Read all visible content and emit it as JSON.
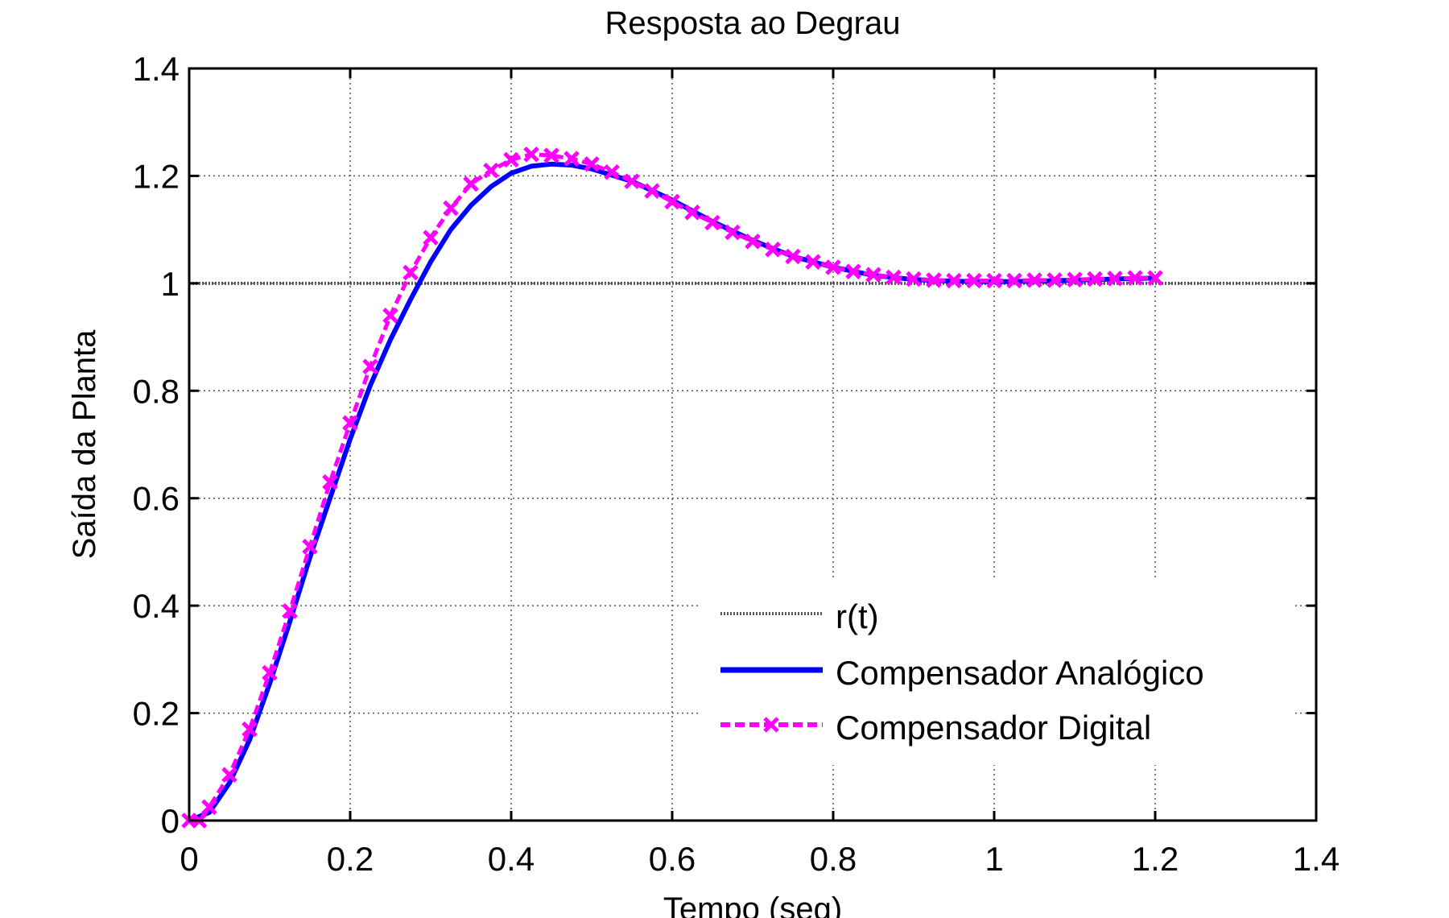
{
  "chart_data": {
    "type": "line",
    "title": "Resposta ao Degrau",
    "xlabel": "Tempo (seg)",
    "ylabel": "Saída da Planta",
    "xlim": [
      0,
      1.4
    ],
    "ylim": [
      0,
      1.4
    ],
    "grid": true,
    "legend_position": "bottom-right",
    "x_ticks": [
      "0",
      "0.2",
      "0.4",
      "0.6",
      "0.8",
      "1",
      "1.2",
      "1.4"
    ],
    "y_ticks": [
      "0",
      "0.2",
      "0.4",
      "0.6",
      "0.8",
      "1",
      "1.2",
      "1.4"
    ],
    "x_tick_values": [
      0,
      0.2,
      0.4,
      0.6,
      0.8,
      1.0,
      1.2,
      1.4
    ],
    "y_tick_values": [
      0,
      0.2,
      0.4,
      0.6,
      0.8,
      1.0,
      1.2,
      1.4
    ],
    "series": [
      {
        "name": "r(t)",
        "style": "dotted",
        "color": "#555555",
        "x": [
          0,
          1.4
        ],
        "y": [
          1,
          1
        ]
      },
      {
        "name": "Compensador Analógico",
        "style": "solid",
        "color": "#0000ff",
        "x": [
          0,
          0.025,
          0.05,
          0.075,
          0.1,
          0.125,
          0.15,
          0.175,
          0.2,
          0.225,
          0.25,
          0.275,
          0.3,
          0.325,
          0.35,
          0.375,
          0.4,
          0.425,
          0.45,
          0.475,
          0.5,
          0.55,
          0.6,
          0.65,
          0.7,
          0.75,
          0.8,
          0.85,
          0.9,
          0.95,
          1.0,
          1.05,
          1.1,
          1.15,
          1.2
        ],
        "y": [
          0,
          0.015,
          0.07,
          0.15,
          0.255,
          0.37,
          0.49,
          0.6,
          0.71,
          0.81,
          0.895,
          0.97,
          1.04,
          1.1,
          1.145,
          1.18,
          1.205,
          1.218,
          1.222,
          1.22,
          1.213,
          1.19,
          1.155,
          1.115,
          1.08,
          1.05,
          1.03,
          1.015,
          1.007,
          1.004,
          1.003,
          1.004,
          1.006,
          1.008,
          1.01
        ]
      },
      {
        "name": "Compensador Digital",
        "style": "dashed-x",
        "color": "#ff00ff",
        "x": [
          0,
          0.0125,
          0.025,
          0.05,
          0.075,
          0.1,
          0.125,
          0.15,
          0.175,
          0.2,
          0.225,
          0.25,
          0.275,
          0.3,
          0.325,
          0.35,
          0.375,
          0.4,
          0.425,
          0.45,
          0.475,
          0.5,
          0.525,
          0.55,
          0.575,
          0.6,
          0.625,
          0.65,
          0.675,
          0.7,
          0.725,
          0.75,
          0.775,
          0.8,
          0.825,
          0.85,
          0.875,
          0.9,
          0.925,
          0.95,
          0.975,
          1.0,
          1.025,
          1.05,
          1.075,
          1.1,
          1.125,
          1.15,
          1.175,
          1.2
        ],
        "y": [
          0,
          0.0,
          0.025,
          0.085,
          0.17,
          0.275,
          0.39,
          0.51,
          0.63,
          0.74,
          0.845,
          0.94,
          1.02,
          1.085,
          1.14,
          1.185,
          1.21,
          1.23,
          1.24,
          1.238,
          1.232,
          1.222,
          1.207,
          1.19,
          1.172,
          1.152,
          1.132,
          1.113,
          1.095,
          1.078,
          1.063,
          1.05,
          1.04,
          1.03,
          1.022,
          1.016,
          1.011,
          1.008,
          1.006,
          1.005,
          1.005,
          1.005,
          1.005,
          1.006,
          1.006,
          1.007,
          1.008,
          1.009,
          1.01,
          1.01
        ]
      }
    ]
  },
  "colors": {
    "analog": "#0000ff",
    "digital": "#ff00ff",
    "reference": "#555555",
    "grid": "#555555"
  }
}
